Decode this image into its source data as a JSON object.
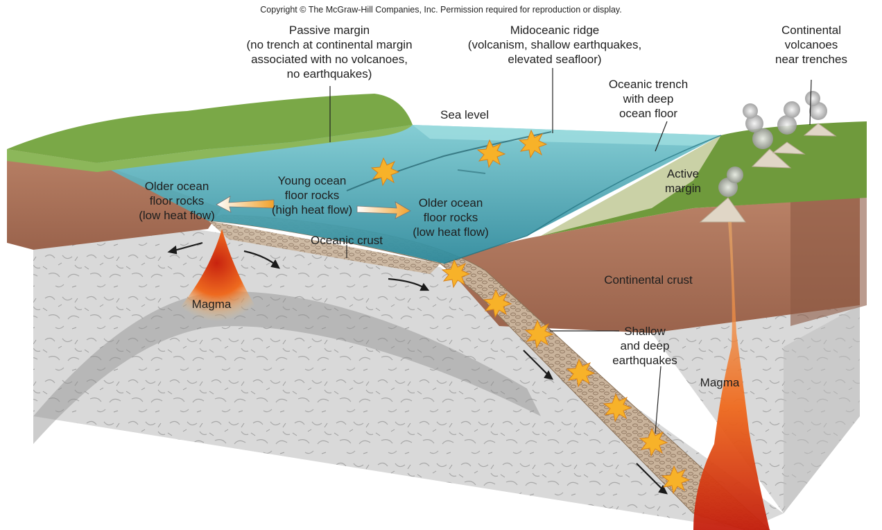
{
  "copyright": "Copyright © The McGraw-Hill Companies, Inc. Permission required for reproduction or display.",
  "labels": {
    "passive_margin": [
      "Passive margin",
      "(no trench at continental margin",
      "associated with no volcanoes,",
      "no earthquakes)"
    ],
    "midoceanic_ridge": [
      "Midoceanic ridge",
      "(volcanism, shallow earthquakes,",
      "elevated seafloor)"
    ],
    "continental_volcanoes": [
      "Continental",
      "volcanoes",
      "near trenches"
    ],
    "sea_level": [
      "Sea level"
    ],
    "oceanic_trench": [
      "Oceanic trench",
      "with deep",
      "ocean floor"
    ],
    "active_margin": [
      "Active",
      "margin"
    ],
    "older_left": [
      "Older ocean",
      "floor rocks",
      "(low heat flow)"
    ],
    "young_floor": [
      "Young ocean",
      "floor rocks",
      "(high heat flow)"
    ],
    "older_right": [
      "Older ocean",
      "floor rocks",
      "(low heat flow)"
    ],
    "oceanic_crust": [
      "Oceanic crust"
    ],
    "continental_crust": [
      "Continental crust"
    ],
    "magma_left": [
      "Magma"
    ],
    "magma_right": [
      "Magma"
    ],
    "earthquakes": [
      "Shallow",
      "and deep",
      "earthquakes"
    ]
  },
  "colors": {
    "ocean": "#4aa5b5",
    "continental_crust": "#a8705a",
    "mantle": "#d6d6d6",
    "grass": "#6f9a3c",
    "magma": "#e8501c",
    "earthquake": "#f7b229"
  }
}
